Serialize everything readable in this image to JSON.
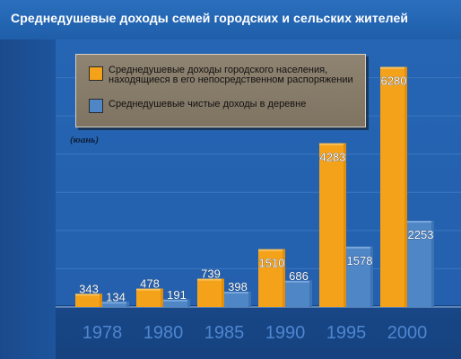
{
  "title": "Среднедушевые доходы семей городских и сельских жителей",
  "chart_data": {
    "type": "bar",
    "title": "Среднедушевые доходы семей городских и сельских жителей",
    "unit": "(юань)",
    "categories": [
      "1978",
      "1980",
      "1985",
      "1990",
      "1995",
      "2000"
    ],
    "series": [
      {
        "name": "Среднедушевые доходы городского населения, находящиеся в его непосредственном распоряжении",
        "color": "#f5a21b",
        "values": [
          343,
          478,
          739,
          1510,
          4283,
          6280
        ]
      },
      {
        "name": "Среднедушевые чистые доходы в деревне",
        "color": "#4f86c6",
        "values": [
          134,
          191,
          398,
          686,
          1578,
          2253
        ]
      }
    ],
    "ylim": [
      0,
      7000
    ],
    "grid": true,
    "legend": "top-left",
    "legend_lines": [
      [
        "Среднедушевые доходы городского населения,",
        "находящиеся в его непосредственном распоряжении"
      ],
      [
        "Среднедушевые чистые доходы в деревне"
      ]
    ]
  }
}
